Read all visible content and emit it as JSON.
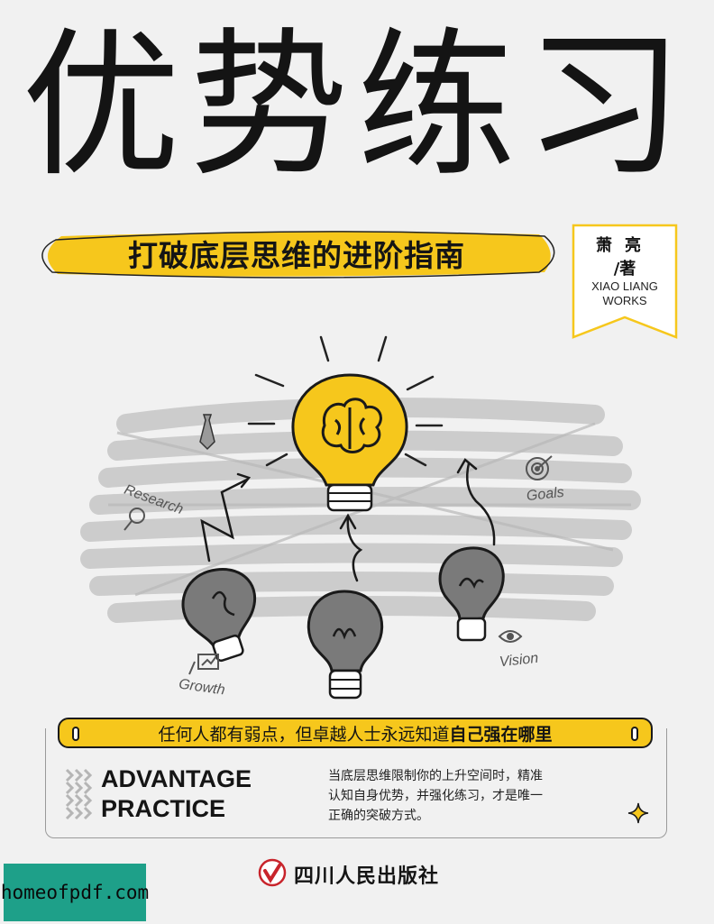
{
  "cover": {
    "title": "优势练习",
    "subtitle": "打破底层思维的进阶指南",
    "author": {
      "name": "萧亮",
      "role": "/著",
      "english_line1": "XIAO LIANG",
      "english_line2": "WORKS"
    },
    "illustration_labels": {
      "research": "Research",
      "goals": "Goals",
      "growth": "Growth",
      "vision": "Vision"
    },
    "slogan": {
      "normal": "任何人都有弱点，但卓越人士永远知道",
      "highlight": "自己强在哪里"
    },
    "english_title": {
      "line1": "ADVANTAGE",
      "line2": "PRACTICE"
    },
    "description": {
      "line1": "当底层思维限制你的上升空间时，精准",
      "line2": "认知自身优势，并强化练习，才是唯一",
      "line3": "正确的突破方式。"
    },
    "publisher": "四川人民出版社",
    "watermark": "homeofpdf.com"
  },
  "colors": {
    "accent_yellow": "#f6c71c",
    "bulb_gray": "#7a7a7a",
    "watermark_green": "#1ea089",
    "text": "#141414"
  },
  "icons": [
    "brain-icon",
    "target-icon",
    "magnifier-icon",
    "eye-icon",
    "chart-icon",
    "tie-icon",
    "sparkle-icon",
    "publisher-logo-icon"
  ]
}
